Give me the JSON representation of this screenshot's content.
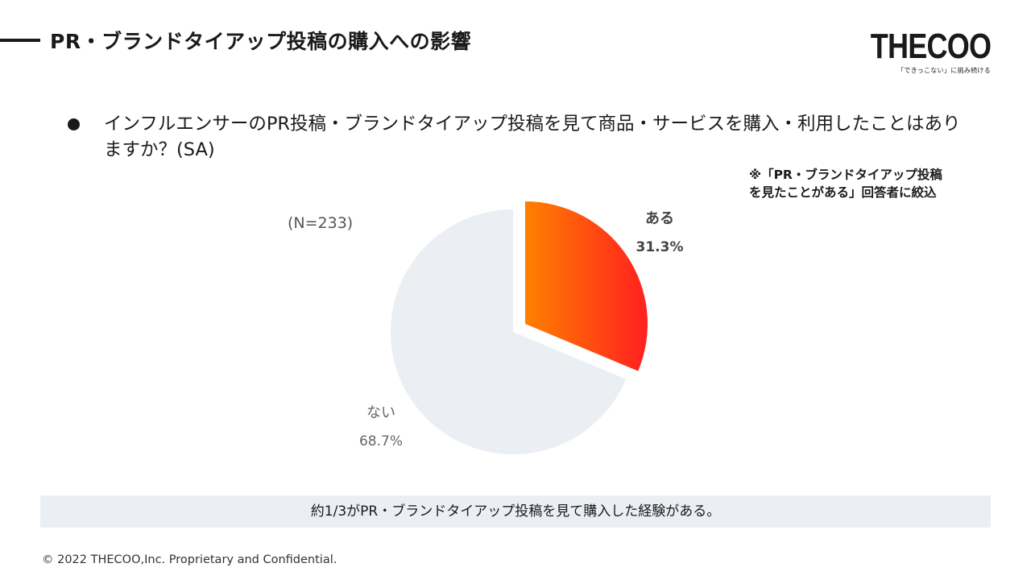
{
  "header": {
    "title": "PR・ブランドタイアップ投稿の購入への影響",
    "logo_main": "THECOO",
    "logo_tagline": "「できっこない」に挑み続ける"
  },
  "question": {
    "text": "インフルエンサーのPR投稿・ブランドタイアップ投稿を見て商品・サービスを購入・利用したことはありますか？(SA)"
  },
  "note": {
    "line1": "※「PR・ブランドタイアップ投稿",
    "line2": "を見たことがある」回答者に絞込"
  },
  "sample_size": "(N=233)",
  "chart_data": {
    "type": "pie",
    "slices": [
      {
        "label": "ある",
        "value": 31.3,
        "value_label": "31.3%",
        "exploded": true
      },
      {
        "label": "ない",
        "value": 68.7,
        "value_label": "68.7%",
        "exploded": false
      }
    ],
    "colors": {
      "ある_gradient_start": "#ff8000",
      "ある_gradient_end": "#ff2020",
      "ない": "#ebeff3"
    }
  },
  "summary": "約1/3がPR・ブランドタイアップ投稿を見て購入した経験がある。",
  "footer": "© 2022 THECOO,Inc. Proprietary and Confidential."
}
